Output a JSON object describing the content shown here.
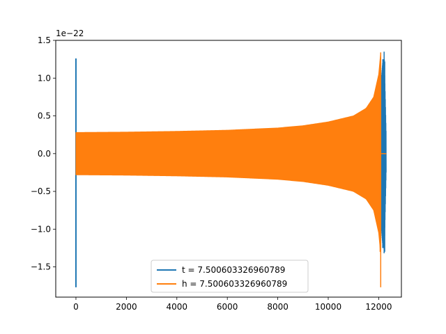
{
  "chart_data": {
    "type": "line",
    "title": "",
    "xlabel": "",
    "ylabel": "",
    "y_offset_label": "1e−22",
    "xlim": [
      -800,
      12900
    ],
    "ylim": [
      -1.9,
      1.5
    ],
    "x_ticks": [
      0,
      2000,
      4000,
      6000,
      8000,
      10000,
      12000
    ],
    "x_tick_labels": [
      "0",
      "2000",
      "4000",
      "6000",
      "8000",
      "10000",
      "12000"
    ],
    "y_ticks": [
      1.5,
      1.0,
      0.5,
      0.0,
      -0.5,
      -1.0,
      -1.5
    ],
    "y_tick_labels": [
      "1.5",
      "1.0",
      "0.5",
      "0.0",
      "−0.5",
      "−1.0",
      "−1.5"
    ],
    "grid": false,
    "legend_position": "bottom-center",
    "series": [
      {
        "name": "t = 7.500603326960789",
        "color": "#1f77b4",
        "description_points": [
          {
            "x": 0,
            "y_min": -1.77,
            "y_max": 1.26
          },
          {
            "x": 12100,
            "y_min": -1.1,
            "y_max": 0.85
          },
          {
            "x": 12200,
            "y_min": -1.3,
            "y_max": 1.35
          },
          {
            "x": 12300,
            "y_min": -0.5,
            "y_max": 0.5
          }
        ],
        "end_x": 12300
      },
      {
        "name": "h = 7.500603326960789",
        "color": "#ff7f0e",
        "envelope": [
          {
            "x": 0,
            "amp": 0.28
          },
          {
            "x": 2000,
            "amp": 0.285
          },
          {
            "x": 4000,
            "amp": 0.295
          },
          {
            "x": 6000,
            "amp": 0.31
          },
          {
            "x": 8000,
            "amp": 0.34
          },
          {
            "x": 9000,
            "amp": 0.37
          },
          {
            "x": 10000,
            "amp": 0.42
          },
          {
            "x": 11000,
            "amp": 0.5
          },
          {
            "x": 11500,
            "amp": 0.6
          },
          {
            "x": 11800,
            "amp": 0.75
          },
          {
            "x": 12000,
            "amp": 1.05
          },
          {
            "x": 12080,
            "amp": 1.34
          }
        ],
        "end_x": 12100,
        "tail_end_x": 12300
      }
    ]
  }
}
